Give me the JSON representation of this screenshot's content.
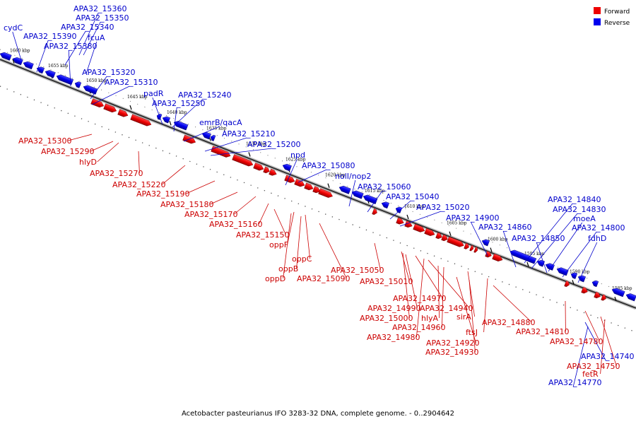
{
  "legend": {
    "forward_label": "Forward",
    "reverse_label": "Reverse",
    "forward_color": "#ee0000",
    "reverse_color": "#0000ee"
  },
  "caption": "Acetobacter pasteurianus IFO 3283-32 DNA, complete genome. - 0..2904642",
  "kbp_ticks": [
    "1660 kbp",
    "1655 kbp",
    "1650 kbp",
    "1645 kbp",
    "1640 kbp",
    "1635 kbp",
    "1630 kbp",
    "1625 kbp",
    "1620 kbp",
    "1615 kbp",
    "1610 kbp",
    "1605 kbp",
    "1600 kbp",
    "1595 kbp",
    "1590 kbp",
    "1585 kbp"
  ],
  "reverse_labels": [
    "APA32_15360",
    "APA32_15350",
    "cydC",
    "APA32_15340",
    "APA32_15390",
    "fcuA",
    "APA32_15380",
    "APA32_15320",
    "APA32_15310",
    "padR",
    "APA32_15240",
    "APA32_15250",
    "emrB/qacA",
    "APA32_15210",
    "APA32_15200",
    "npd",
    "APA32_15080",
    "nolI/nop2",
    "APA32_15060",
    "APA32_15040",
    "APA32_15020",
    "APA32_14900",
    "APA32_14840",
    "APA32_14830",
    "moeA",
    "APA32_14860",
    "APA32_14800",
    "APA32_14850",
    "fdhD",
    "APA32_14740",
    "APA32_14770"
  ],
  "forward_labels": [
    "APA32_15300",
    "APA32_15290",
    "hlyD",
    "APA32_15270",
    "APA32_15220",
    "APA32_15190",
    "APA32_15180",
    "APA32_15170",
    "APA32_15160",
    "APA32_15150",
    "oppF",
    "oppC",
    "oppB",
    "oppD",
    "APA32_15090",
    "APA32_15050",
    "APA32_15010",
    "APA32_14970",
    "APA32_14940",
    "APA32_14990",
    "APA32_15000",
    "hlyA",
    "sirA",
    "APA32_14960",
    "APA32_14980",
    "APA32_14920",
    "APA32_14930",
    "ftsJ",
    "APA32_14880",
    "APA32_14810",
    "APA32_14780",
    "APA32_14750",
    "fetR"
  ]
}
